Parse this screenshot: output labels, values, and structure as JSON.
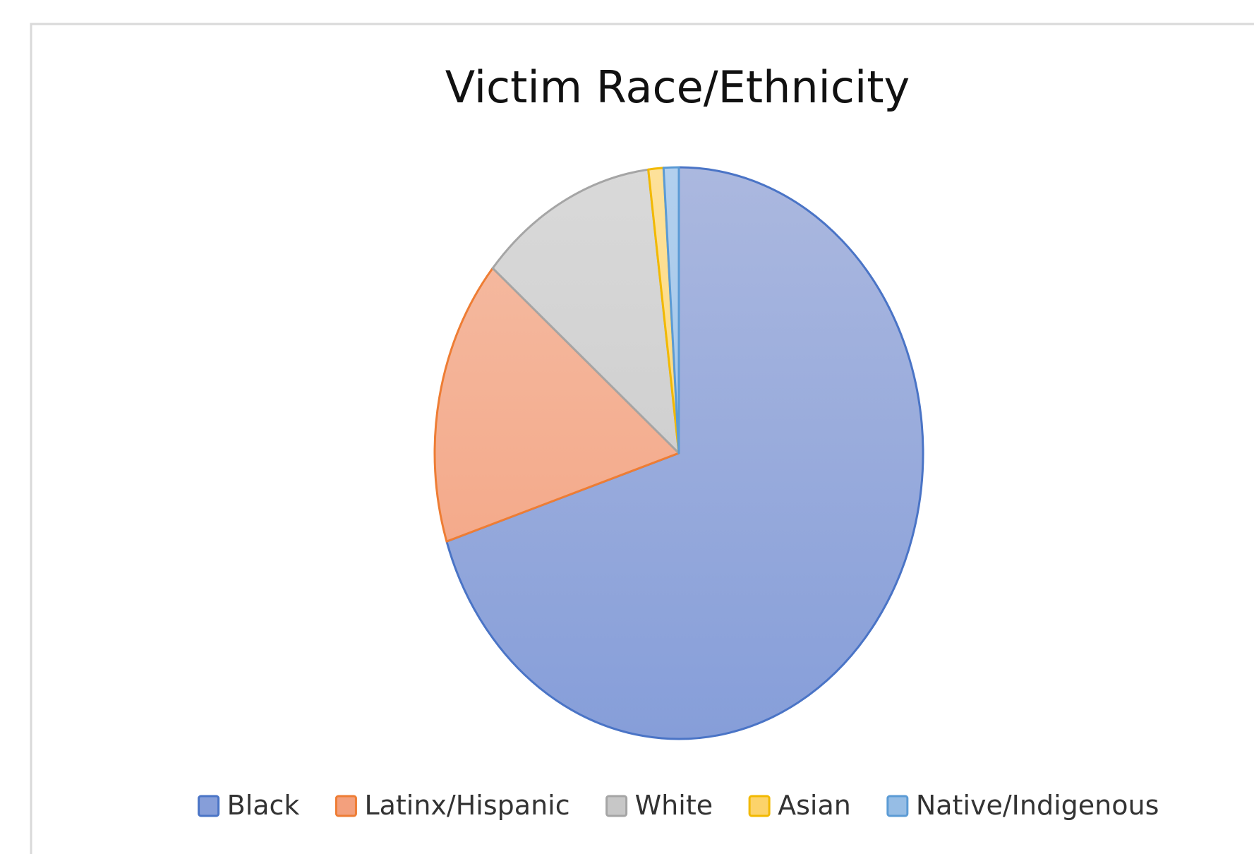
{
  "chart_data": {
    "type": "pie",
    "title": "Victim Race/Ethnicity",
    "start_angle_deg": 0,
    "direction": "clockwise",
    "legend_position": "bottom",
    "slices": [
      {
        "label": "Black",
        "value": 70.0,
        "fill_top": "#abb8df",
        "fill_bottom": "#869ed9",
        "stroke": "#4a74c6"
      },
      {
        "label": "Latinx/Hispanic",
        "value": 16.2,
        "fill_top": "#f5bda5",
        "fill_bottom": "#f3a07d",
        "stroke": "#ee7d34"
      },
      {
        "label": "White",
        "value": 11.8,
        "fill_top": "#d9d9d9",
        "fill_bottom": "#c7c7c7",
        "stroke": "#a5a5a5"
      },
      {
        "label": "Asian",
        "value": 1.0,
        "fill_top": "#fde19a",
        "fill_bottom": "#fcd36a",
        "stroke": "#f2b900"
      },
      {
        "label": "Native/Indigenous",
        "value": 1.0,
        "fill_top": "#b2d0ee",
        "fill_bottom": "#96bde5",
        "stroke": "#5b9bd5"
      }
    ]
  }
}
